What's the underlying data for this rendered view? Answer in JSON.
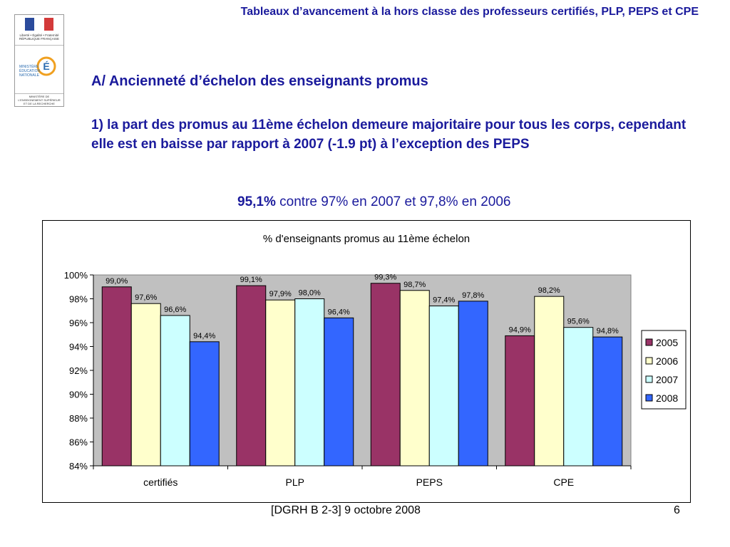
{
  "header": {
    "title": "Tableaux d’avancement à la hors classe des professeurs certifiés, PLP, PEPS et CPE"
  },
  "logos": {
    "republique": "Liberté • Égalité • Fraternité RÉPUBLIQUE FRANÇAISE",
    "ministere_education": "MINISTÈRE ÉDUCATION NATIONALE",
    "ministere_recherche": "MINISTÈRE DE L'ENSEIGNEMENT SUPÉRIEUR ET DE LA RECHERCHE"
  },
  "content": {
    "section_heading": "A/ Ancienneté d’échelon des enseignants promus",
    "subheading": "1) la part des promus au 11ème échelon demeure majoritaire pour tous les corps, cependant elle est en baisse par rapport à 2007 (-1.9 pt) à l’exception des PEPS",
    "highlight_value": "95,1%",
    "highlight_rest": " contre 97% en 2007 et 97,8% en 2006"
  },
  "colors": {
    "text_blue": "#1a1a9c",
    "plot_bg": "#c0c0c0",
    "series_2005": "#993366",
    "series_2006": "#ffffcc",
    "series_2007": "#ccffff",
    "series_2008": "#3366ff"
  },
  "chart_data": {
    "type": "bar",
    "title": "% d'enseignants promus au 11ème échelon",
    "categories": [
      "certifiés",
      "PLP",
      "PEPS",
      "CPE"
    ],
    "series": [
      {
        "name": "2005",
        "values": [
          99.0,
          99.1,
          99.3,
          94.9
        ],
        "labels": [
          "99,0%",
          "99,1%",
          "99,3%",
          "94,9%"
        ]
      },
      {
        "name": "2006",
        "values": [
          97.6,
          97.9,
          98.7,
          98.2
        ],
        "labels": [
          "97,6%",
          "97,9%",
          "98,7%",
          "98,2%"
        ]
      },
      {
        "name": "2007",
        "values": [
          96.6,
          98.0,
          97.4,
          95.6
        ],
        "labels": [
          "96,6%",
          "98,0%",
          "97,4%",
          "95,6%"
        ]
      },
      {
        "name": "2008",
        "values": [
          94.4,
          96.4,
          97.8,
          94.8
        ],
        "labels": [
          "94,4%",
          "96,4%",
          "97,8%",
          "94,8%"
        ]
      }
    ],
    "ylim": [
      84,
      100
    ],
    "yticks": [
      84,
      86,
      88,
      90,
      92,
      94,
      96,
      98,
      100
    ],
    "ytick_labels": [
      "84%",
      "86%",
      "88%",
      "90%",
      "92%",
      "94%",
      "96%",
      "98%",
      "100%"
    ],
    "xlabel": "",
    "ylabel": "",
    "legend": "right"
  },
  "footer": {
    "reference": "[DGRH B 2-3] 9 octobre 2008",
    "page": "6"
  }
}
